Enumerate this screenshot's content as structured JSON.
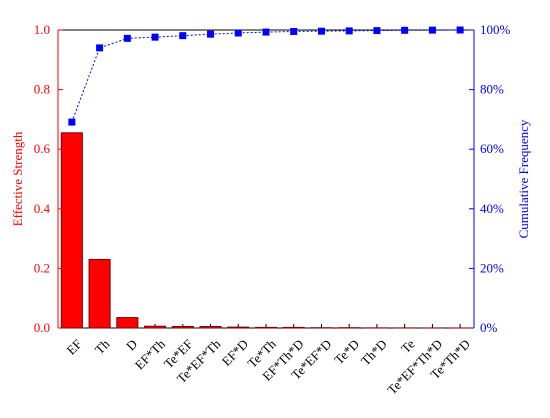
{
  "chart_data": {
    "type": "pareto",
    "ylabel": "Effective Strength",
    "y2label": "Cumulative Frequency",
    "categories": [
      "EF",
      "Th",
      "D",
      "EF*Th",
      "Te*EF",
      "Te*EF*Th",
      "EF*D",
      "Te*Th",
      "EF*Th*D",
      "Te*EF*D",
      "Te*D",
      "Th*D",
      "Te",
      "Te*EF*Th*D",
      "Te*Th*D"
    ],
    "series": [
      {
        "type": "bar",
        "color": "#ff0000",
        "values": [
          0.655,
          0.23,
          0.035,
          0.006,
          0.005,
          0.005,
          0.003,
          0.002,
          0.002,
          0.001,
          0.001,
          0.0005,
          0.0003,
          0.0002,
          0.0001
        ]
      },
      {
        "type": "line",
        "axis": "y2",
        "color": "#0000ff",
        "values": [
          69.1,
          94,
          97.2,
          97.6,
          98.1,
          98.6,
          99,
          99.3,
          99.5,
          99.6,
          99.7,
          99.8,
          99.9,
          99.95,
          100
        ]
      }
    ],
    "ylim": [
      0,
      1
    ],
    "yticks": [
      {
        "value": 0,
        "label": "0.0"
      },
      {
        "value": 0.2,
        "label": "0.2"
      },
      {
        "value": 0.4,
        "label": "0.4"
      },
      {
        "value": 0.6,
        "label": "0.6"
      },
      {
        "value": 0.8,
        "label": "0.8"
      },
      {
        "value": 1,
        "label": "1.0"
      }
    ],
    "y2lim": [
      0,
      100
    ],
    "y2ticks": [
      {
        "value": 0,
        "label": "0%"
      },
      {
        "value": 20,
        "label": "20%"
      },
      {
        "value": 40,
        "label": "40%"
      },
      {
        "value": 60,
        "label": "60%"
      },
      {
        "value": 80,
        "label": "80%"
      },
      {
        "value": 100,
        "label": "100%"
      }
    ],
    "grid": false
  }
}
